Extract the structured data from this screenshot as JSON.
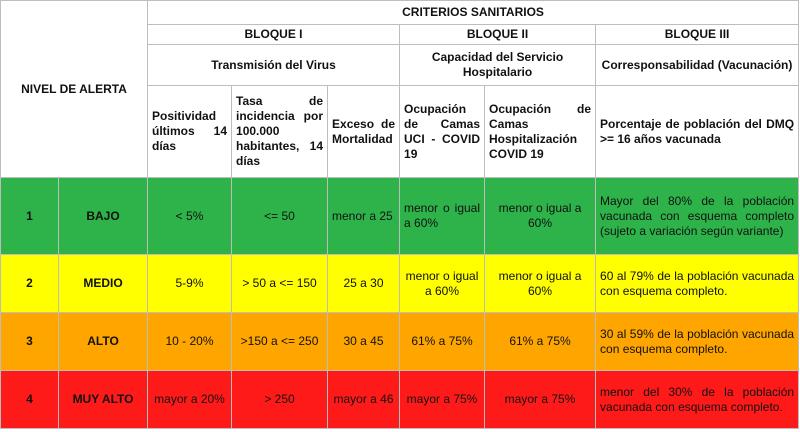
{
  "header": {
    "nivel_label": "NIVEL DE ALERTA",
    "criterios": "CRITERIOS SANITARIOS"
  },
  "blocks": [
    {
      "title": "BLOQUE I",
      "subtitle": "Transmisión del Virus"
    },
    {
      "title": "BLOQUE II",
      "subtitle": "Capacidad del Servicio Hospitalario"
    },
    {
      "title": "BLOQUE III",
      "subtitle": "Corresponsabilidad (Vacunación)"
    }
  ],
  "columns": [
    "Positividad últimos 14 días",
    "Tasa de incidencia por 100.000 habitantes, 14 días",
    "Exceso de Mortalidad",
    "Ocupación de Camas UCI - COVID 19",
    "Ocupación de Camas Hospitalización COVID 19",
    "Porcentaje de población del DMQ >= 16 años vacunada"
  ],
  "rows": [
    {
      "num": "1",
      "level": "BAJO",
      "color": "#2db34a",
      "cells": [
        "< 5%",
        "<= 50",
        "menor a 25",
        "menor o igual a 60%",
        "menor o igual a 60%",
        "Mayor del 80% de la población vacunada con esquema completo (sujeto a variación según variante)"
      ]
    },
    {
      "num": "2",
      "level": "MEDIO",
      "color": "#ffff00",
      "cells": [
        "5-9%",
        "> 50 a <= 150",
        "25 a 30",
        "menor o igual a 60%",
        "menor o igual a 60%",
        "60 al 79% de la población vacunada con esquema completo."
      ]
    },
    {
      "num": "3",
      "level": "ALTO",
      "color": "#ffa500",
      "cells": [
        "10 - 20%",
        ">150 a <= 250",
        "30 a 45",
        "61% a 75%",
        "61% a 75%",
        "30 al 59% de la población vacunada con esquema completo."
      ]
    },
    {
      "num": "4",
      "level": "MUY ALTO",
      "color": "#ff1a1a",
      "cells": [
        "mayor a 20%",
        "> 250",
        "mayor a 46",
        "mayor a 75%",
        "mayor a 75%",
        "menor del 30% de la población vacunada con esquema completo."
      ]
    }
  ]
}
